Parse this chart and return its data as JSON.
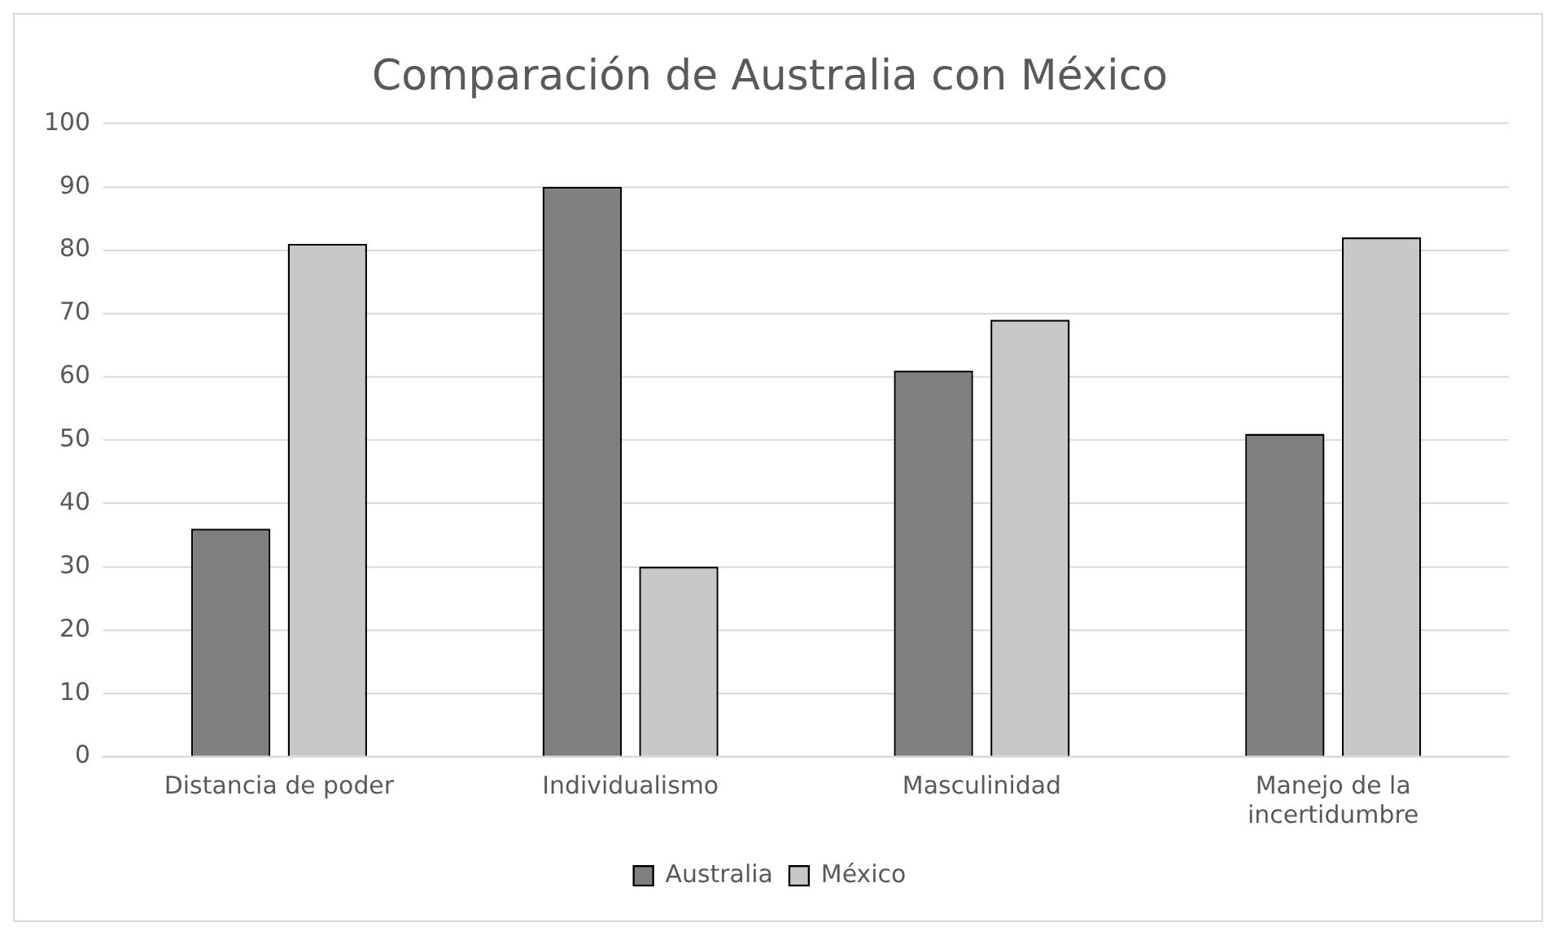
{
  "chart_data": {
    "type": "bar",
    "title": "Comparación de Australia con México",
    "categories": [
      "Distancia de poder",
      "Individualismo",
      "Masculinidad",
      "Manejo de la incertidumbre"
    ],
    "series": [
      {
        "name": "Australia",
        "color": "#7f7f7f",
        "values": [
          36,
          90,
          61,
          51
        ]
      },
      {
        "name": "México",
        "color": "#c8c8c8",
        "values": [
          81,
          30,
          69,
          82
        ]
      }
    ],
    "ylim": [
      0,
      100
    ],
    "yticks": [
      0,
      10,
      20,
      30,
      40,
      50,
      60,
      70,
      80,
      90,
      100
    ],
    "grid": "y",
    "legend": "bottom"
  }
}
